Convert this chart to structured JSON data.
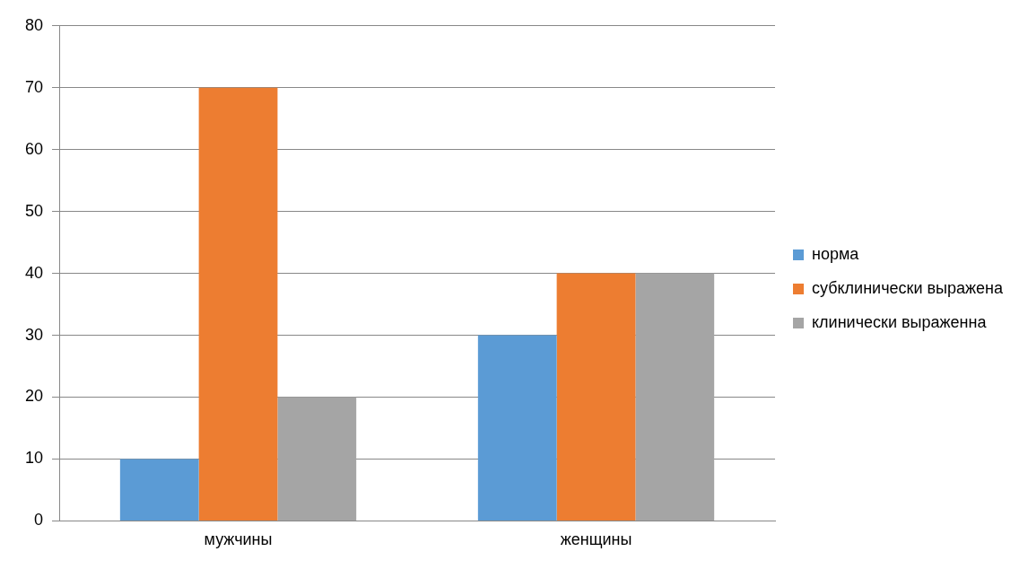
{
  "chart_data": {
    "type": "bar",
    "categories": [
      "мужчины",
      "женщины"
    ],
    "series": [
      {
        "name": "норма",
        "color": "#5b9bd5",
        "values": [
          10,
          30
        ]
      },
      {
        "name": "субклинически выражена",
        "color": "#ed7d31",
        "values": [
          70,
          40
        ]
      },
      {
        "name": "клинически выраженна",
        "color": "#a5a5a5",
        "values": [
          20,
          40
        ]
      }
    ],
    "ylim": [
      0,
      80
    ],
    "yticks": [
      0,
      10,
      20,
      30,
      40,
      50,
      60,
      70,
      80
    ],
    "grid": "y",
    "legend": "right"
  }
}
